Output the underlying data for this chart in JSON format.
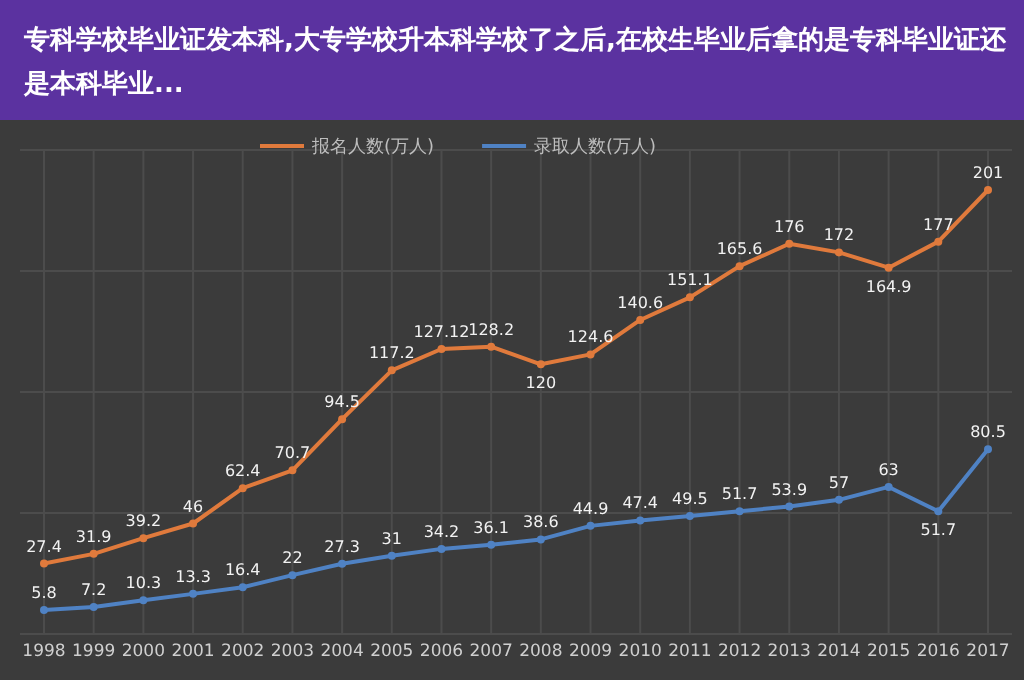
{
  "chart_data": {
    "type": "line",
    "title": "专科学校毕业证发本科,大专学校升本科学校了之后,在校生毕业后拿的是专科毕业证还是本科毕业...",
    "categories": [
      "1998",
      "1999",
      "2000",
      "2001",
      "2002",
      "2003",
      "2004",
      "2005",
      "2006",
      "2007",
      "2008",
      "2009",
      "2010",
      "2011",
      "2012",
      "2013",
      "2014",
      "2015",
      "2016",
      "2017"
    ],
    "series": [
      {
        "name": "报名人数(万人)",
        "color": "#e07a3c",
        "values": [
          27.4,
          31.9,
          39.2,
          46,
          62.4,
          70.7,
          94.5,
          117.2,
          127.12,
          128.2,
          120,
          124.6,
          140.6,
          151.1,
          165.6,
          176,
          172,
          164.9,
          177,
          201
        ]
      },
      {
        "name": "录取人数(万人)",
        "color": "#4f82c4",
        "values": [
          5.8,
          7.2,
          10.3,
          13.3,
          16.4,
          22,
          27.3,
          31,
          34.2,
          36.1,
          38.6,
          44.9,
          47.4,
          49.5,
          51.7,
          53.9,
          57,
          63,
          51.7,
          80.5
        ]
      }
    ],
    "data_labels": true,
    "legend": "top",
    "grid": true,
    "marker": "circle",
    "line_style": "solid"
  }
}
